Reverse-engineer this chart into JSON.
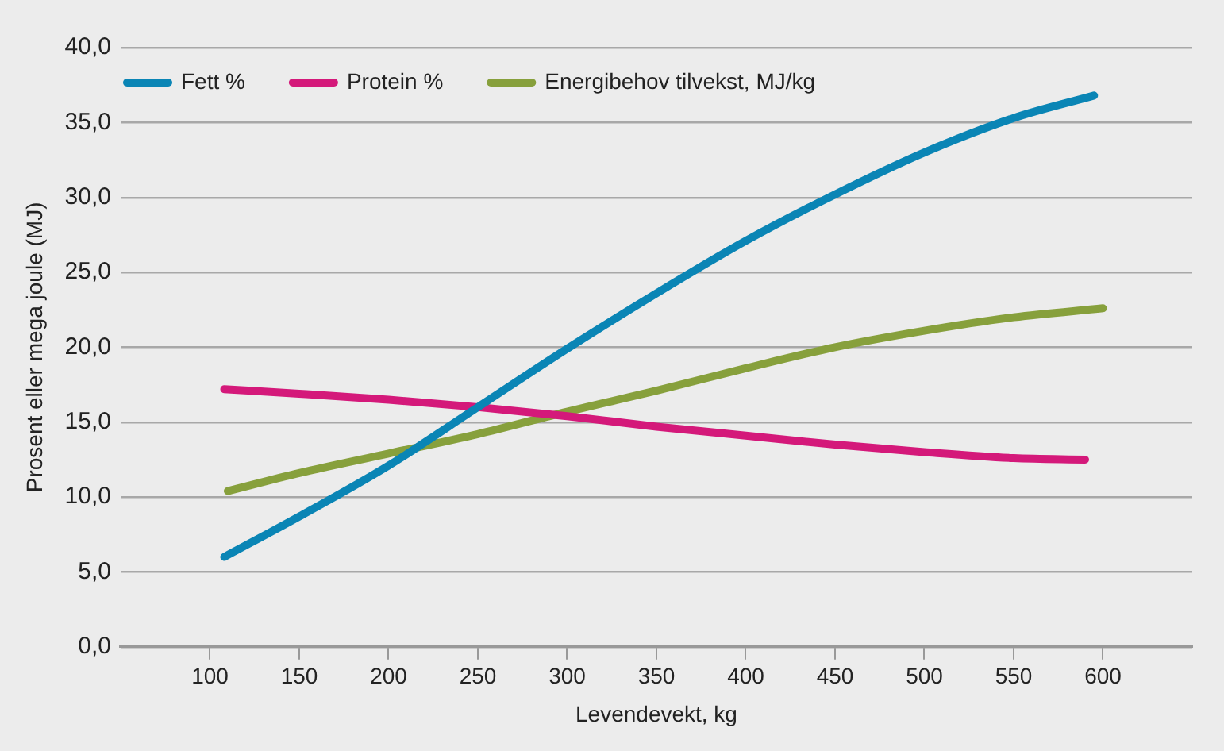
{
  "chart_data": {
    "type": "line",
    "xlabel": "Levendevekt, kg",
    "ylabel": "Prosent eller mega joule (MJ)",
    "xlim": [
      50,
      650
    ],
    "xticks": [
      100,
      150,
      200,
      250,
      300,
      350,
      400,
      450,
      500,
      550,
      600
    ],
    "ylim": [
      0,
      40
    ],
    "yticks": [
      {
        "value": 0,
        "label": "0,0"
      },
      {
        "value": 5,
        "label": "5,0"
      },
      {
        "value": 10,
        "label": "10,0"
      },
      {
        "value": 15,
        "label": "15,0"
      },
      {
        "value": 20,
        "label": "20,0"
      },
      {
        "value": 25,
        "label": "25,0"
      },
      {
        "value": 30,
        "label": "30,0"
      },
      {
        "value": 35,
        "label": "35,0"
      },
      {
        "value": 40,
        "label": "40,0"
      }
    ],
    "grid": "y",
    "legend": "top left",
    "marker": "none",
    "line_style": "solid",
    "series": [
      {
        "name": "Fett %",
        "color": "#0a85b5",
        "x": [
          108,
          150,
          200,
          250,
          300,
          350,
          400,
          450,
          500,
          550,
          595
        ],
        "values": [
          6.0,
          8.7,
          12.1,
          16.0,
          19.9,
          23.6,
          27.1,
          30.2,
          33.0,
          35.3,
          36.8
        ]
      },
      {
        "name": "Protein %",
        "color": "#d4197a",
        "x": [
          108,
          150,
          200,
          250,
          300,
          350,
          400,
          450,
          500,
          550,
          590
        ],
        "values": [
          17.2,
          16.9,
          16.5,
          16.0,
          15.4,
          14.7,
          14.1,
          13.5,
          13.0,
          12.6,
          12.5
        ]
      },
      {
        "name": "Energibehov tilvekst, MJ/kg",
        "color": "#87a03c",
        "x": [
          110,
          150,
          200,
          250,
          300,
          350,
          400,
          450,
          500,
          550,
          600
        ],
        "values": [
          10.4,
          11.6,
          12.9,
          14.2,
          15.7,
          17.1,
          18.6,
          20.0,
          21.1,
          22.0,
          22.6
        ]
      }
    ]
  }
}
